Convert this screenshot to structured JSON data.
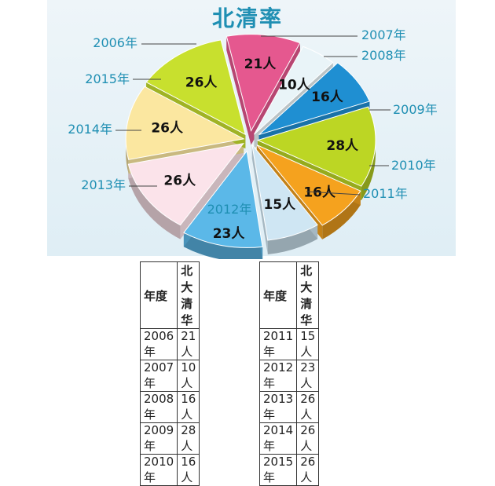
{
  "chart_data": {
    "type": "pie",
    "title": "北清率",
    "slices": [
      {
        "year": "2006年",
        "value": 21,
        "value_label": "21人",
        "color": "#e5588f"
      },
      {
        "year": "2007年",
        "value": 10,
        "value_label": "10人",
        "color": "#e9f4f8"
      },
      {
        "year": "2008年",
        "value": 16,
        "value_label": "16人",
        "color": "#1f8fd2"
      },
      {
        "year": "2009年",
        "value": 28,
        "value_label": "28人",
        "color": "#bcd624"
      },
      {
        "year": "2010年",
        "value": 16,
        "value_label": "16人",
        "color": "#f5a21e"
      },
      {
        "year": "2011年",
        "value": 15,
        "value_label": "15人",
        "color": "#cfe6f3"
      },
      {
        "year": "2012年",
        "value": 23,
        "value_label": "23人",
        "color": "#5bb8e8"
      },
      {
        "year": "2013年",
        "value": 26,
        "value_label": "26人",
        "color": "#fbe3ea"
      },
      {
        "year": "2014年",
        "value": 26,
        "value_label": "26人",
        "color": "#fbe7a0"
      },
      {
        "year": "2015年",
        "value": 26,
        "value_label": "26人",
        "color": "#c8e02e"
      }
    ]
  },
  "table": {
    "header_year": "年度",
    "header_value": "北大清华",
    "left_rows": [
      {
        "year": "2006年",
        "value": "21 人"
      },
      {
        "year": "2007年",
        "value": "10 人"
      },
      {
        "year": "2008年",
        "value": "16 人"
      },
      {
        "year": "2009年",
        "value": "28 人"
      },
      {
        "year": "2010年",
        "value": "16 人"
      }
    ],
    "right_rows": [
      {
        "year": "2011年",
        "value": "15 人"
      },
      {
        "year": "2012年",
        "value": "23 人"
      },
      {
        "year": "2013年",
        "value": "26 人"
      },
      {
        "year": "2014年",
        "value": "26 人"
      },
      {
        "year": "2015年",
        "value": "26 人"
      }
    ]
  }
}
